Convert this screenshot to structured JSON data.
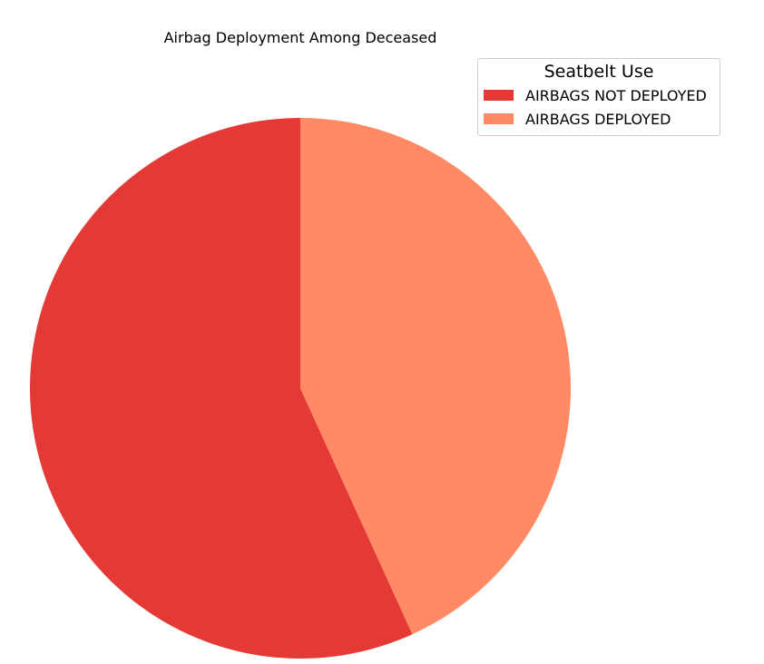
{
  "chart_data": {
    "type": "pie",
    "title": "Airbag Deployment Among Deceased",
    "legend": {
      "title": "Seatbelt Use",
      "placement": "top-right"
    },
    "start_angle_deg": 90,
    "direction": "counterclockwise",
    "slices": [
      {
        "label": "AIRBAGS NOT DEPLOYED",
        "value": 56.8,
        "color": "#e53935"
      },
      {
        "label": "AIRBAGS DEPLOYED",
        "value": 43.2,
        "color": "#ff8a65"
      }
    ]
  }
}
